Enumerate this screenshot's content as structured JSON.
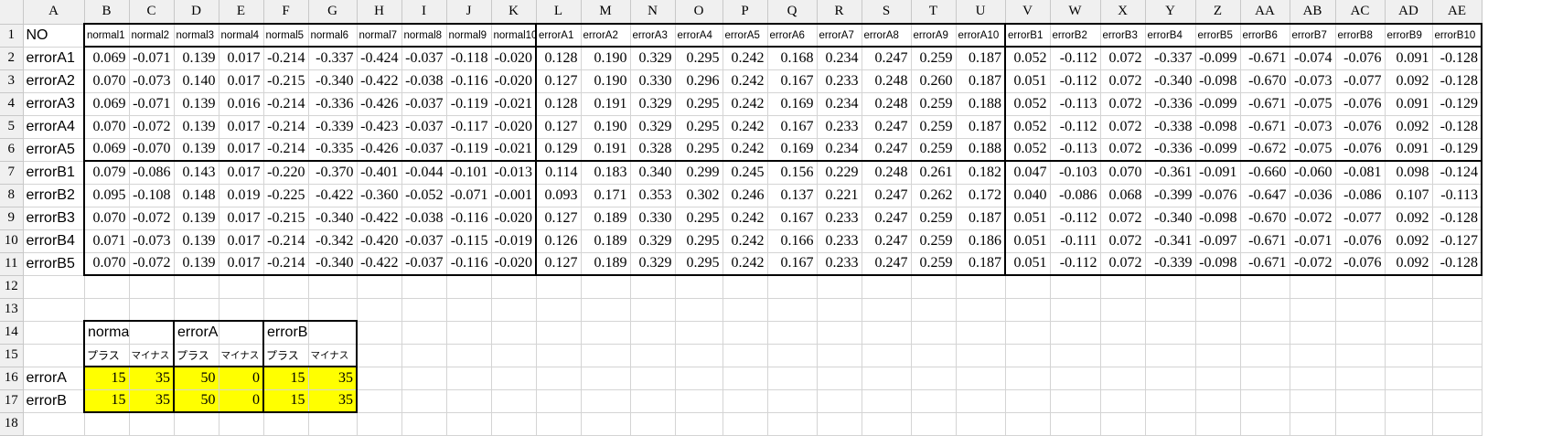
{
  "sheet": {
    "column_headers": [
      "A",
      "B",
      "C",
      "D",
      "E",
      "F",
      "G",
      "H",
      "I",
      "J",
      "K",
      "L",
      "M",
      "N",
      "O",
      "P",
      "Q",
      "R",
      "S",
      "T",
      "U",
      "V",
      "W",
      "X",
      "Y",
      "Z",
      "AA",
      "AB",
      "AC",
      "AD",
      "AE"
    ],
    "row_headers": [
      "1",
      "2",
      "3",
      "4",
      "5",
      "6",
      "7",
      "8",
      "9",
      "10",
      "11",
      "12",
      "13",
      "14",
      "15",
      "16",
      "17",
      "18"
    ],
    "header_row": [
      "NO",
      "normal1",
      "normal2",
      "normal3",
      "normal4",
      "normal5",
      "normal6",
      "normal7",
      "normal8",
      "normal9",
      "normal10",
      "errorA1",
      "errorA2",
      "errorA3",
      "errorA4",
      "errorA5",
      "errorA6",
      "errorA7",
      "errorA8",
      "errorA9",
      "errorA10",
      "errorB1",
      "errorB2",
      "errorB3",
      "errorB4",
      "errorB5",
      "errorB6",
      "errorB7",
      "errorB8",
      "errorB9",
      "errorB10"
    ],
    "data_rows": [
      {
        "label": "errorA1",
        "values": [
          "0.069",
          "-0.071",
          "0.139",
          "0.017",
          "-0.214",
          "-0.337",
          "-0.424",
          "-0.037",
          "-0.118",
          "-0.020",
          "0.128",
          "0.190",
          "0.329",
          "0.295",
          "0.242",
          "0.168",
          "0.234",
          "0.247",
          "0.259",
          "0.187",
          "0.052",
          "-0.112",
          "0.072",
          "-0.337",
          "-0.099",
          "-0.671",
          "-0.074",
          "-0.076",
          "0.091",
          "-0.128"
        ]
      },
      {
        "label": "errorA2",
        "values": [
          "0.070",
          "-0.073",
          "0.140",
          "0.017",
          "-0.215",
          "-0.340",
          "-0.422",
          "-0.038",
          "-0.116",
          "-0.020",
          "0.127",
          "0.190",
          "0.330",
          "0.296",
          "0.242",
          "0.167",
          "0.233",
          "0.248",
          "0.260",
          "0.187",
          "0.051",
          "-0.112",
          "0.072",
          "-0.340",
          "-0.098",
          "-0.670",
          "-0.073",
          "-0.077",
          "0.092",
          "-0.128"
        ]
      },
      {
        "label": "errorA3",
        "values": [
          "0.069",
          "-0.071",
          "0.139",
          "0.016",
          "-0.214",
          "-0.336",
          "-0.426",
          "-0.037",
          "-0.119",
          "-0.021",
          "0.128",
          "0.191",
          "0.329",
          "0.295",
          "0.242",
          "0.169",
          "0.234",
          "0.248",
          "0.259",
          "0.188",
          "0.052",
          "-0.113",
          "0.072",
          "-0.336",
          "-0.099",
          "-0.671",
          "-0.075",
          "-0.076",
          "0.091",
          "-0.129"
        ]
      },
      {
        "label": "errorA4",
        "values": [
          "0.070",
          "-0.072",
          "0.139",
          "0.017",
          "-0.214",
          "-0.339",
          "-0.423",
          "-0.037",
          "-0.117",
          "-0.020",
          "0.127",
          "0.190",
          "0.329",
          "0.295",
          "0.242",
          "0.167",
          "0.233",
          "0.247",
          "0.259",
          "0.187",
          "0.052",
          "-0.112",
          "0.072",
          "-0.338",
          "-0.098",
          "-0.671",
          "-0.073",
          "-0.076",
          "0.092",
          "-0.128"
        ]
      },
      {
        "label": "errorA5",
        "values": [
          "0.069",
          "-0.070",
          "0.139",
          "0.017",
          "-0.214",
          "-0.335",
          "-0.426",
          "-0.037",
          "-0.119",
          "-0.021",
          "0.129",
          "0.191",
          "0.328",
          "0.295",
          "0.242",
          "0.169",
          "0.234",
          "0.247",
          "0.259",
          "0.188",
          "0.052",
          "-0.113",
          "0.072",
          "-0.336",
          "-0.099",
          "-0.672",
          "-0.075",
          "-0.076",
          "0.091",
          "-0.129"
        ]
      },
      {
        "label": "errorB1",
        "values": [
          "0.079",
          "-0.086",
          "0.143",
          "0.017",
          "-0.220",
          "-0.370",
          "-0.401",
          "-0.044",
          "-0.101",
          "-0.013",
          "0.114",
          "0.183",
          "0.340",
          "0.299",
          "0.245",
          "0.156",
          "0.229",
          "0.248",
          "0.261",
          "0.182",
          "0.047",
          "-0.103",
          "0.070",
          "-0.361",
          "-0.091",
          "-0.660",
          "-0.060",
          "-0.081",
          "0.098",
          "-0.124"
        ]
      },
      {
        "label": "errorB2",
        "values": [
          "0.095",
          "-0.108",
          "0.148",
          "0.019",
          "-0.225",
          "-0.422",
          "-0.360",
          "-0.052",
          "-0.071",
          "-0.001",
          "0.093",
          "0.171",
          "0.353",
          "0.302",
          "0.246",
          "0.137",
          "0.221",
          "0.247",
          "0.262",
          "0.172",
          "0.040",
          "-0.086",
          "0.068",
          "-0.399",
          "-0.076",
          "-0.647",
          "-0.036",
          "-0.086",
          "0.107",
          "-0.113"
        ]
      },
      {
        "label": "errorB3",
        "values": [
          "0.070",
          "-0.072",
          "0.139",
          "0.017",
          "-0.215",
          "-0.340",
          "-0.422",
          "-0.038",
          "-0.116",
          "-0.020",
          "0.127",
          "0.189",
          "0.330",
          "0.295",
          "0.242",
          "0.167",
          "0.233",
          "0.247",
          "0.259",
          "0.187",
          "0.051",
          "-0.112",
          "0.072",
          "-0.340",
          "-0.098",
          "-0.670",
          "-0.072",
          "-0.077",
          "0.092",
          "-0.128"
        ]
      },
      {
        "label": "errorB4",
        "values": [
          "0.071",
          "-0.073",
          "0.139",
          "0.017",
          "-0.214",
          "-0.342",
          "-0.420",
          "-0.037",
          "-0.115",
          "-0.019",
          "0.126",
          "0.189",
          "0.329",
          "0.295",
          "0.242",
          "0.166",
          "0.233",
          "0.247",
          "0.259",
          "0.186",
          "0.051",
          "-0.111",
          "0.072",
          "-0.341",
          "-0.097",
          "-0.671",
          "-0.071",
          "-0.076",
          "0.092",
          "-0.127"
        ]
      },
      {
        "label": "errorB5",
        "values": [
          "0.070",
          "-0.072",
          "0.139",
          "0.017",
          "-0.214",
          "-0.340",
          "-0.422",
          "-0.037",
          "-0.116",
          "-0.020",
          "0.127",
          "0.189",
          "0.329",
          "0.295",
          "0.242",
          "0.167",
          "0.233",
          "0.247",
          "0.259",
          "0.187",
          "0.051",
          "-0.112",
          "0.072",
          "-0.339",
          "-0.098",
          "-0.671",
          "-0.072",
          "-0.076",
          "0.092",
          "-0.128"
        ]
      }
    ],
    "summary": {
      "groups": [
        "normal",
        "errorA",
        "errorB"
      ],
      "subheaders": [
        "プラス",
        "マイナス",
        "プラス",
        "マイナス",
        "プラス",
        "マイナス"
      ],
      "rows": [
        {
          "label": "errorA",
          "values": [
            "15",
            "35",
            "50",
            "0",
            "15",
            "35"
          ]
        },
        {
          "label": "errorB",
          "values": [
            "15",
            "35",
            "50",
            "0",
            "15",
            "35"
          ]
        }
      ]
    },
    "colors": {
      "highlight": "#ffff00",
      "header_bg": "#f0f0f0",
      "gridline": "#d4d4d4",
      "border": "#000000"
    }
  }
}
